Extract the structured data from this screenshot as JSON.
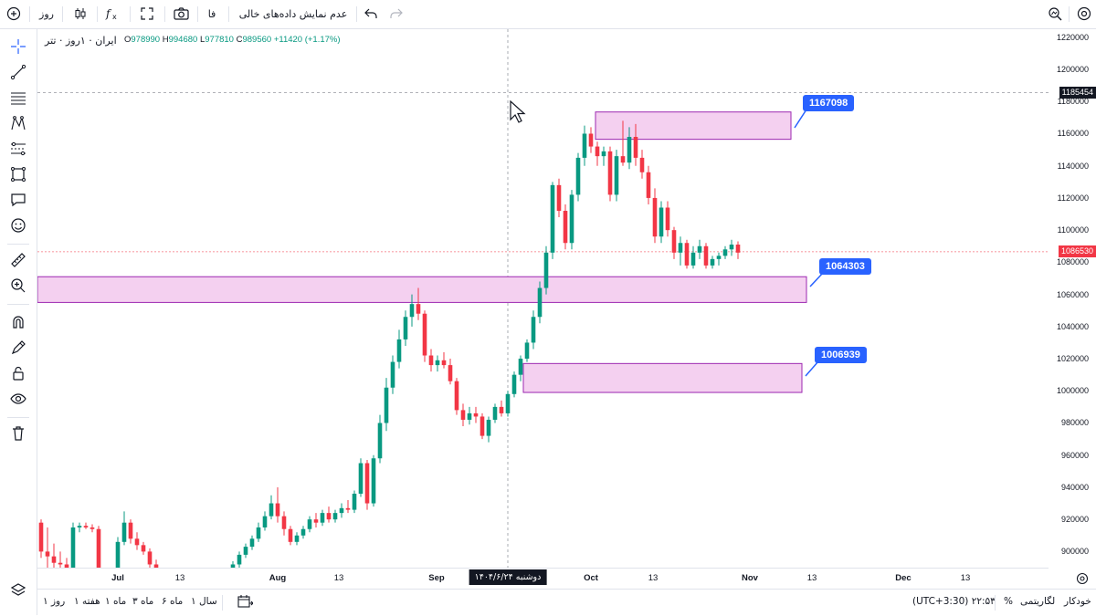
{
  "toolbar": {
    "timeframe": "روز",
    "currency": "فا",
    "empty_data_toggle": "عدم نمایش داده‌های خالی"
  },
  "legend": {
    "symbol": "ایران · ۱روز · تتر",
    "open_label": "O",
    "open": "978990",
    "high_label": "H",
    "high": "994680",
    "low_label": "L",
    "low": "977810",
    "close_label": "C",
    "close": "989560",
    "change": "+11420 (+1.17%)"
  },
  "y_axis_labels": [
    "1220000",
    "1200000",
    "1180000",
    "1160000",
    "1140000",
    "1120000",
    "1100000",
    "1080000",
    "1060000",
    "1040000",
    "1020000",
    "1000000",
    "980000",
    "960000",
    "940000",
    "920000",
    "900000"
  ],
  "x_axis_labels": [
    "Jul",
    "13",
    "Aug",
    "13",
    "Sep",
    "Oct",
    "13",
    "Nov",
    "13",
    "Dec",
    "13"
  ],
  "crosshair_price": "1185454",
  "last_price": "1086530",
  "crosshair_date": "دوشنبه ۱۴۰۴/۶/۲۴",
  "zones": [
    {
      "label": "1167098",
      "low": 1156500,
      "high": 1173500
    },
    {
      "label": "1064303",
      "low": 1055000,
      "high": 1071000
    },
    {
      "label": "1006939",
      "low": 999000,
      "high": 1017000
    }
  ],
  "bottom": {
    "ranges": [
      "۱ روز",
      "۱ هفته",
      "۱ ماه",
      "۳ ماه",
      "۶ ماه",
      "۱ سال"
    ],
    "clock": "(UTC+3:30) ۲۲:۵۳",
    "percent": "%",
    "log": "لگاریتمی",
    "auto": "خودکار"
  },
  "colors": {
    "up": "#089981",
    "down": "#f23645",
    "zone_fill": "#f4d0f0",
    "zone_border": "#9c27b0",
    "callout": "#2962ff"
  },
  "chart_data": {
    "type": "candlestick",
    "ylim": [
      890000,
      1225000
    ],
    "series_up_color": "#089981",
    "series_down_color": "#f23645",
    "candles": [
      {
        "o": 918000,
        "h": 920000,
        "l": 896000,
        "c": 900000
      },
      {
        "o": 900000,
        "h": 915000,
        "l": 890000,
        "c": 897000
      },
      {
        "o": 897000,
        "h": 905000,
        "l": 890000,
        "c": 893000
      },
      {
        "o": 893000,
        "h": 900000,
        "l": 888000,
        "c": 892000
      },
      {
        "o": 892000,
        "h": 896000,
        "l": 886000,
        "c": 888000
      },
      {
        "o": 888000,
        "h": 918000,
        "l": 886000,
        "c": 915000
      },
      {
        "o": 915000,
        "h": 918000,
        "l": 912000,
        "c": 916000
      },
      {
        "o": 916000,
        "h": 918000,
        "l": 914000,
        "c": 915000
      },
      {
        "o": 915000,
        "h": 917000,
        "l": 912000,
        "c": 914000
      },
      {
        "o": 914000,
        "h": 916000,
        "l": 880000,
        "c": 884000
      },
      {
        "o": 884000,
        "h": 888000,
        "l": 880000,
        "c": 886000
      },
      {
        "o": 886000,
        "h": 890000,
        "l": 882000,
        "c": 887000
      },
      {
        "o": 887000,
        "h": 909000,
        "l": 885000,
        "c": 906000
      },
      {
        "o": 906000,
        "h": 925000,
        "l": 904000,
        "c": 918000
      },
      {
        "o": 918000,
        "h": 920000,
        "l": 905000,
        "c": 908000
      },
      {
        "o": 908000,
        "h": 912000,
        "l": 901000,
        "c": 904000
      },
      {
        "o": 904000,
        "h": 906000,
        "l": 898000,
        "c": 900000
      },
      {
        "o": 900000,
        "h": 902000,
        "l": 890000,
        "c": 892000
      },
      {
        "o": 892000,
        "h": 895000,
        "l": 885000,
        "c": 888000
      },
      {
        "o": 888000,
        "h": 890000,
        "l": 880000,
        "c": 884000
      },
      {
        "o": 884000,
        "h": 886000,
        "l": 878000,
        "c": 882000
      },
      {
        "o": 882000,
        "h": 884000,
        "l": 876000,
        "c": 880000
      },
      {
        "o": 880000,
        "h": 882000,
        "l": 876000,
        "c": 878000
      },
      {
        "o": 878000,
        "h": 888000,
        "l": 877000,
        "c": 886000
      },
      {
        "o": 886000,
        "h": 888000,
        "l": 880000,
        "c": 884000
      },
      {
        "o": 884000,
        "h": 889000,
        "l": 882000,
        "c": 887000
      },
      {
        "o": 887000,
        "h": 889000,
        "l": 883000,
        "c": 885000
      },
      {
        "o": 885000,
        "h": 887000,
        "l": 880000,
        "c": 882000
      },
      {
        "o": 882000,
        "h": 885000,
        "l": 879000,
        "c": 883000
      },
      {
        "o": 883000,
        "h": 890000,
        "l": 881000,
        "c": 888000
      },
      {
        "o": 888000,
        "h": 894000,
        "l": 886000,
        "c": 892000
      },
      {
        "o": 892000,
        "h": 900000,
        "l": 890000,
        "c": 898000
      },
      {
        "o": 898000,
        "h": 905000,
        "l": 896000,
        "c": 903000
      },
      {
        "o": 903000,
        "h": 910000,
        "l": 901000,
        "c": 908000
      },
      {
        "o": 908000,
        "h": 918000,
        "l": 906000,
        "c": 915000
      },
      {
        "o": 915000,
        "h": 925000,
        "l": 913000,
        "c": 922000
      },
      {
        "o": 922000,
        "h": 935000,
        "l": 920000,
        "c": 930000
      },
      {
        "o": 930000,
        "h": 940000,
        "l": 918000,
        "c": 922000
      },
      {
        "o": 922000,
        "h": 925000,
        "l": 910000,
        "c": 914000
      },
      {
        "o": 914000,
        "h": 916000,
        "l": 904000,
        "c": 906000
      },
      {
        "o": 906000,
        "h": 912000,
        "l": 904000,
        "c": 910000
      },
      {
        "o": 910000,
        "h": 916000,
        "l": 908000,
        "c": 914000
      },
      {
        "o": 914000,
        "h": 922000,
        "l": 912000,
        "c": 920000
      },
      {
        "o": 920000,
        "h": 924000,
        "l": 915000,
        "c": 918000
      },
      {
        "o": 918000,
        "h": 926000,
        "l": 916000,
        "c": 924000
      },
      {
        "o": 924000,
        "h": 928000,
        "l": 918000,
        "c": 920000
      },
      {
        "o": 920000,
        "h": 926000,
        "l": 918000,
        "c": 924000
      },
      {
        "o": 924000,
        "h": 930000,
        "l": 921000,
        "c": 927000
      },
      {
        "o": 927000,
        "h": 932000,
        "l": 924000,
        "c": 926000
      },
      {
        "o": 926000,
        "h": 938000,
        "l": 924000,
        "c": 936000
      },
      {
        "o": 936000,
        "h": 958000,
        "l": 934000,
        "c": 955000
      },
      {
        "o": 955000,
        "h": 957000,
        "l": 926000,
        "c": 930000
      },
      {
        "o": 930000,
        "h": 960000,
        "l": 928000,
        "c": 958000
      },
      {
        "o": 958000,
        "h": 985000,
        "l": 955000,
        "c": 980000
      },
      {
        "o": 980000,
        "h": 1008000,
        "l": 975000,
        "c": 1002000
      },
      {
        "o": 1002000,
        "h": 1022000,
        "l": 998000,
        "c": 1018000
      },
      {
        "o": 1018000,
        "h": 1038000,
        "l": 1014000,
        "c": 1032000
      },
      {
        "o": 1032000,
        "h": 1050000,
        "l": 1028000,
        "c": 1046000
      },
      {
        "o": 1046000,
        "h": 1060000,
        "l": 1040000,
        "c": 1054000
      },
      {
        "o": 1054000,
        "h": 1064000,
        "l": 1044000,
        "c": 1048000
      },
      {
        "o": 1048000,
        "h": 1050000,
        "l": 1018000,
        "c": 1022000
      },
      {
        "o": 1022000,
        "h": 1026000,
        "l": 1012000,
        "c": 1016000
      },
      {
        "o": 1016000,
        "h": 1022000,
        "l": 1012000,
        "c": 1019000
      },
      {
        "o": 1019000,
        "h": 1024000,
        "l": 1014000,
        "c": 1016000
      },
      {
        "o": 1016000,
        "h": 1020000,
        "l": 1004000,
        "c": 1006000
      },
      {
        "o": 1006000,
        "h": 1008000,
        "l": 985000,
        "c": 988000
      },
      {
        "o": 988000,
        "h": 992000,
        "l": 978000,
        "c": 982000
      },
      {
        "o": 982000,
        "h": 990000,
        "l": 979000,
        "c": 986000
      },
      {
        "o": 986000,
        "h": 990000,
        "l": 980000,
        "c": 984000
      },
      {
        "o": 984000,
        "h": 986000,
        "l": 970000,
        "c": 972000
      },
      {
        "o": 972000,
        "h": 984000,
        "l": 968000,
        "c": 982000
      },
      {
        "o": 982000,
        "h": 992000,
        "l": 980000,
        "c": 990000
      },
      {
        "o": 990000,
        "h": 994000,
        "l": 984000,
        "c": 986000
      },
      {
        "o": 986000,
        "h": 1000000,
        "l": 984000,
        "c": 998000
      },
      {
        "o": 998000,
        "h": 1012000,
        "l": 996000,
        "c": 1010000
      },
      {
        "o": 1010000,
        "h": 1022000,
        "l": 1006000,
        "c": 1020000
      },
      {
        "o": 1020000,
        "h": 1032000,
        "l": 1018000,
        "c": 1030000
      },
      {
        "o": 1030000,
        "h": 1050000,
        "l": 1026000,
        "c": 1046000
      },
      {
        "o": 1046000,
        "h": 1068000,
        "l": 1042000,
        "c": 1064000
      },
      {
        "o": 1064000,
        "h": 1090000,
        "l": 1060000,
        "c": 1086000
      },
      {
        "o": 1086000,
        "h": 1130000,
        "l": 1082000,
        "c": 1128000
      },
      {
        "o": 1128000,
        "h": 1132000,
        "l": 1108000,
        "c": 1112000
      },
      {
        "o": 1112000,
        "h": 1116000,
        "l": 1088000,
        "c": 1092000
      },
      {
        "o": 1092000,
        "h": 1125000,
        "l": 1088000,
        "c": 1122000
      },
      {
        "o": 1122000,
        "h": 1148000,
        "l": 1118000,
        "c": 1145000
      },
      {
        "o": 1145000,
        "h": 1165000,
        "l": 1140000,
        "c": 1160000
      },
      {
        "o": 1160000,
        "h": 1164000,
        "l": 1148000,
        "c": 1152000
      },
      {
        "o": 1152000,
        "h": 1155000,
        "l": 1140000,
        "c": 1146000
      },
      {
        "o": 1146000,
        "h": 1152000,
        "l": 1140000,
        "c": 1149000
      },
      {
        "o": 1149000,
        "h": 1152000,
        "l": 1118000,
        "c": 1122000
      },
      {
        "o": 1122000,
        "h": 1150000,
        "l": 1118000,
        "c": 1146000
      },
      {
        "o": 1146000,
        "h": 1168000,
        "l": 1140000,
        "c": 1142000
      },
      {
        "o": 1142000,
        "h": 1164000,
        "l": 1138000,
        "c": 1158000
      },
      {
        "o": 1158000,
        "h": 1166000,
        "l": 1140000,
        "c": 1145000
      },
      {
        "o": 1145000,
        "h": 1150000,
        "l": 1132000,
        "c": 1136000
      },
      {
        "o": 1136000,
        "h": 1140000,
        "l": 1116000,
        "c": 1120000
      },
      {
        "o": 1120000,
        "h": 1126000,
        "l": 1092000,
        "c": 1096000
      },
      {
        "o": 1096000,
        "h": 1118000,
        "l": 1092000,
        "c": 1114000
      },
      {
        "o": 1114000,
        "h": 1118000,
        "l": 1096000,
        "c": 1100000
      },
      {
        "o": 1100000,
        "h": 1102000,
        "l": 1082000,
        "c": 1086000
      },
      {
        "o": 1086000,
        "h": 1096000,
        "l": 1078000,
        "c": 1092000
      },
      {
        "o": 1092000,
        "h": 1094000,
        "l": 1076000,
        "c": 1078000
      },
      {
        "o": 1078000,
        "h": 1090000,
        "l": 1076000,
        "c": 1086000
      },
      {
        "o": 1086000,
        "h": 1094000,
        "l": 1082000,
        "c": 1090000
      },
      {
        "o": 1090000,
        "h": 1092000,
        "l": 1076000,
        "c": 1078000
      },
      {
        "o": 1078000,
        "h": 1084000,
        "l": 1076000,
        "c": 1082000
      },
      {
        "o": 1082000,
        "h": 1086000,
        "l": 1078000,
        "c": 1084000
      },
      {
        "o": 1084000,
        "h": 1090000,
        "l": 1082000,
        "c": 1088000
      },
      {
        "o": 1088000,
        "h": 1094000,
        "l": 1084000,
        "c": 1091000
      },
      {
        "o": 1091000,
        "h": 1093000,
        "l": 1082000,
        "c": 1086000
      }
    ]
  }
}
